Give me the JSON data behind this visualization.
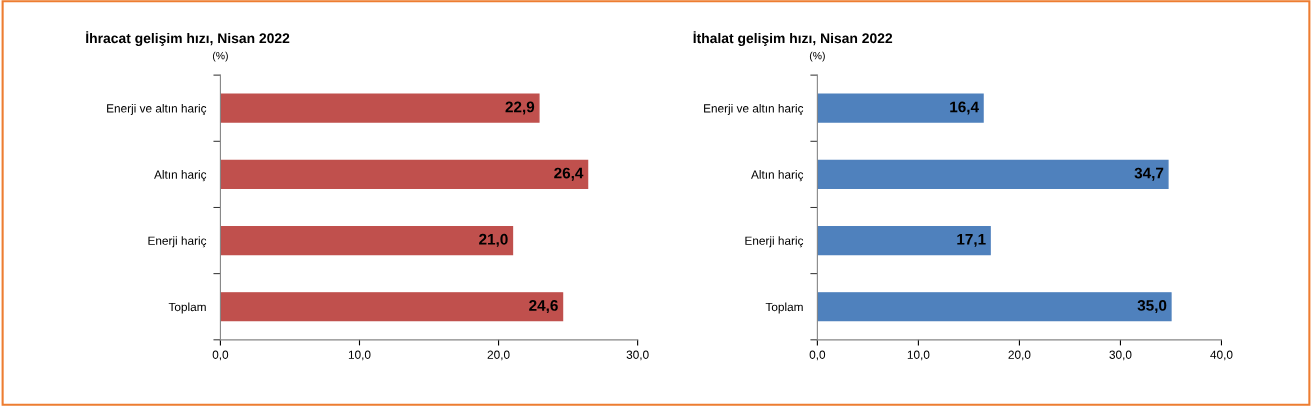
{
  "chart_data": [
    {
      "type": "bar",
      "orientation": "horizontal",
      "title": "İhracat gelişim hızı, Nisan 2022",
      "ylabel": "(%)",
      "categories": [
        "Enerji ve altın hariç",
        "Altın hariç",
        "Enerji hariç",
        "Toplam"
      ],
      "values": [
        22.9,
        26.4,
        21.0,
        24.6
      ],
      "color": "#c0504d",
      "value_labels": [
        "22,9",
        "26,4",
        "21,0",
        "24,6"
      ],
      "xlim": [
        0,
        30
      ],
      "xticks": [
        {
          "value": 0,
          "label": "0,0"
        },
        {
          "value": 10,
          "label": "10,0"
        },
        {
          "value": 20,
          "label": "20,0"
        },
        {
          "value": 30,
          "label": "30,0"
        }
      ],
      "grid": false,
      "legend": false
    },
    {
      "type": "bar",
      "orientation": "horizontal",
      "title": "İthalat gelişim hızı, Nisan 2022",
      "ylabel": "(%)",
      "categories": [
        "Enerji ve altın hariç",
        "Altın hariç",
        "Enerji hariç",
        "Toplam"
      ],
      "values": [
        16.4,
        34.7,
        17.1,
        35.0
      ],
      "color": "#4f81bd",
      "value_labels": [
        "16,4",
        "34,7",
        "17,1",
        "35,0"
      ],
      "xlim": [
        0,
        40
      ],
      "xticks": [
        {
          "value": 0,
          "label": "0,0"
        },
        {
          "value": 10,
          "label": "10,0"
        },
        {
          "value": 20,
          "label": "20,0"
        },
        {
          "value": 30,
          "label": "30,0"
        },
        {
          "value": 40,
          "label": "40,0"
        }
      ],
      "grid": false,
      "legend": false
    }
  ]
}
